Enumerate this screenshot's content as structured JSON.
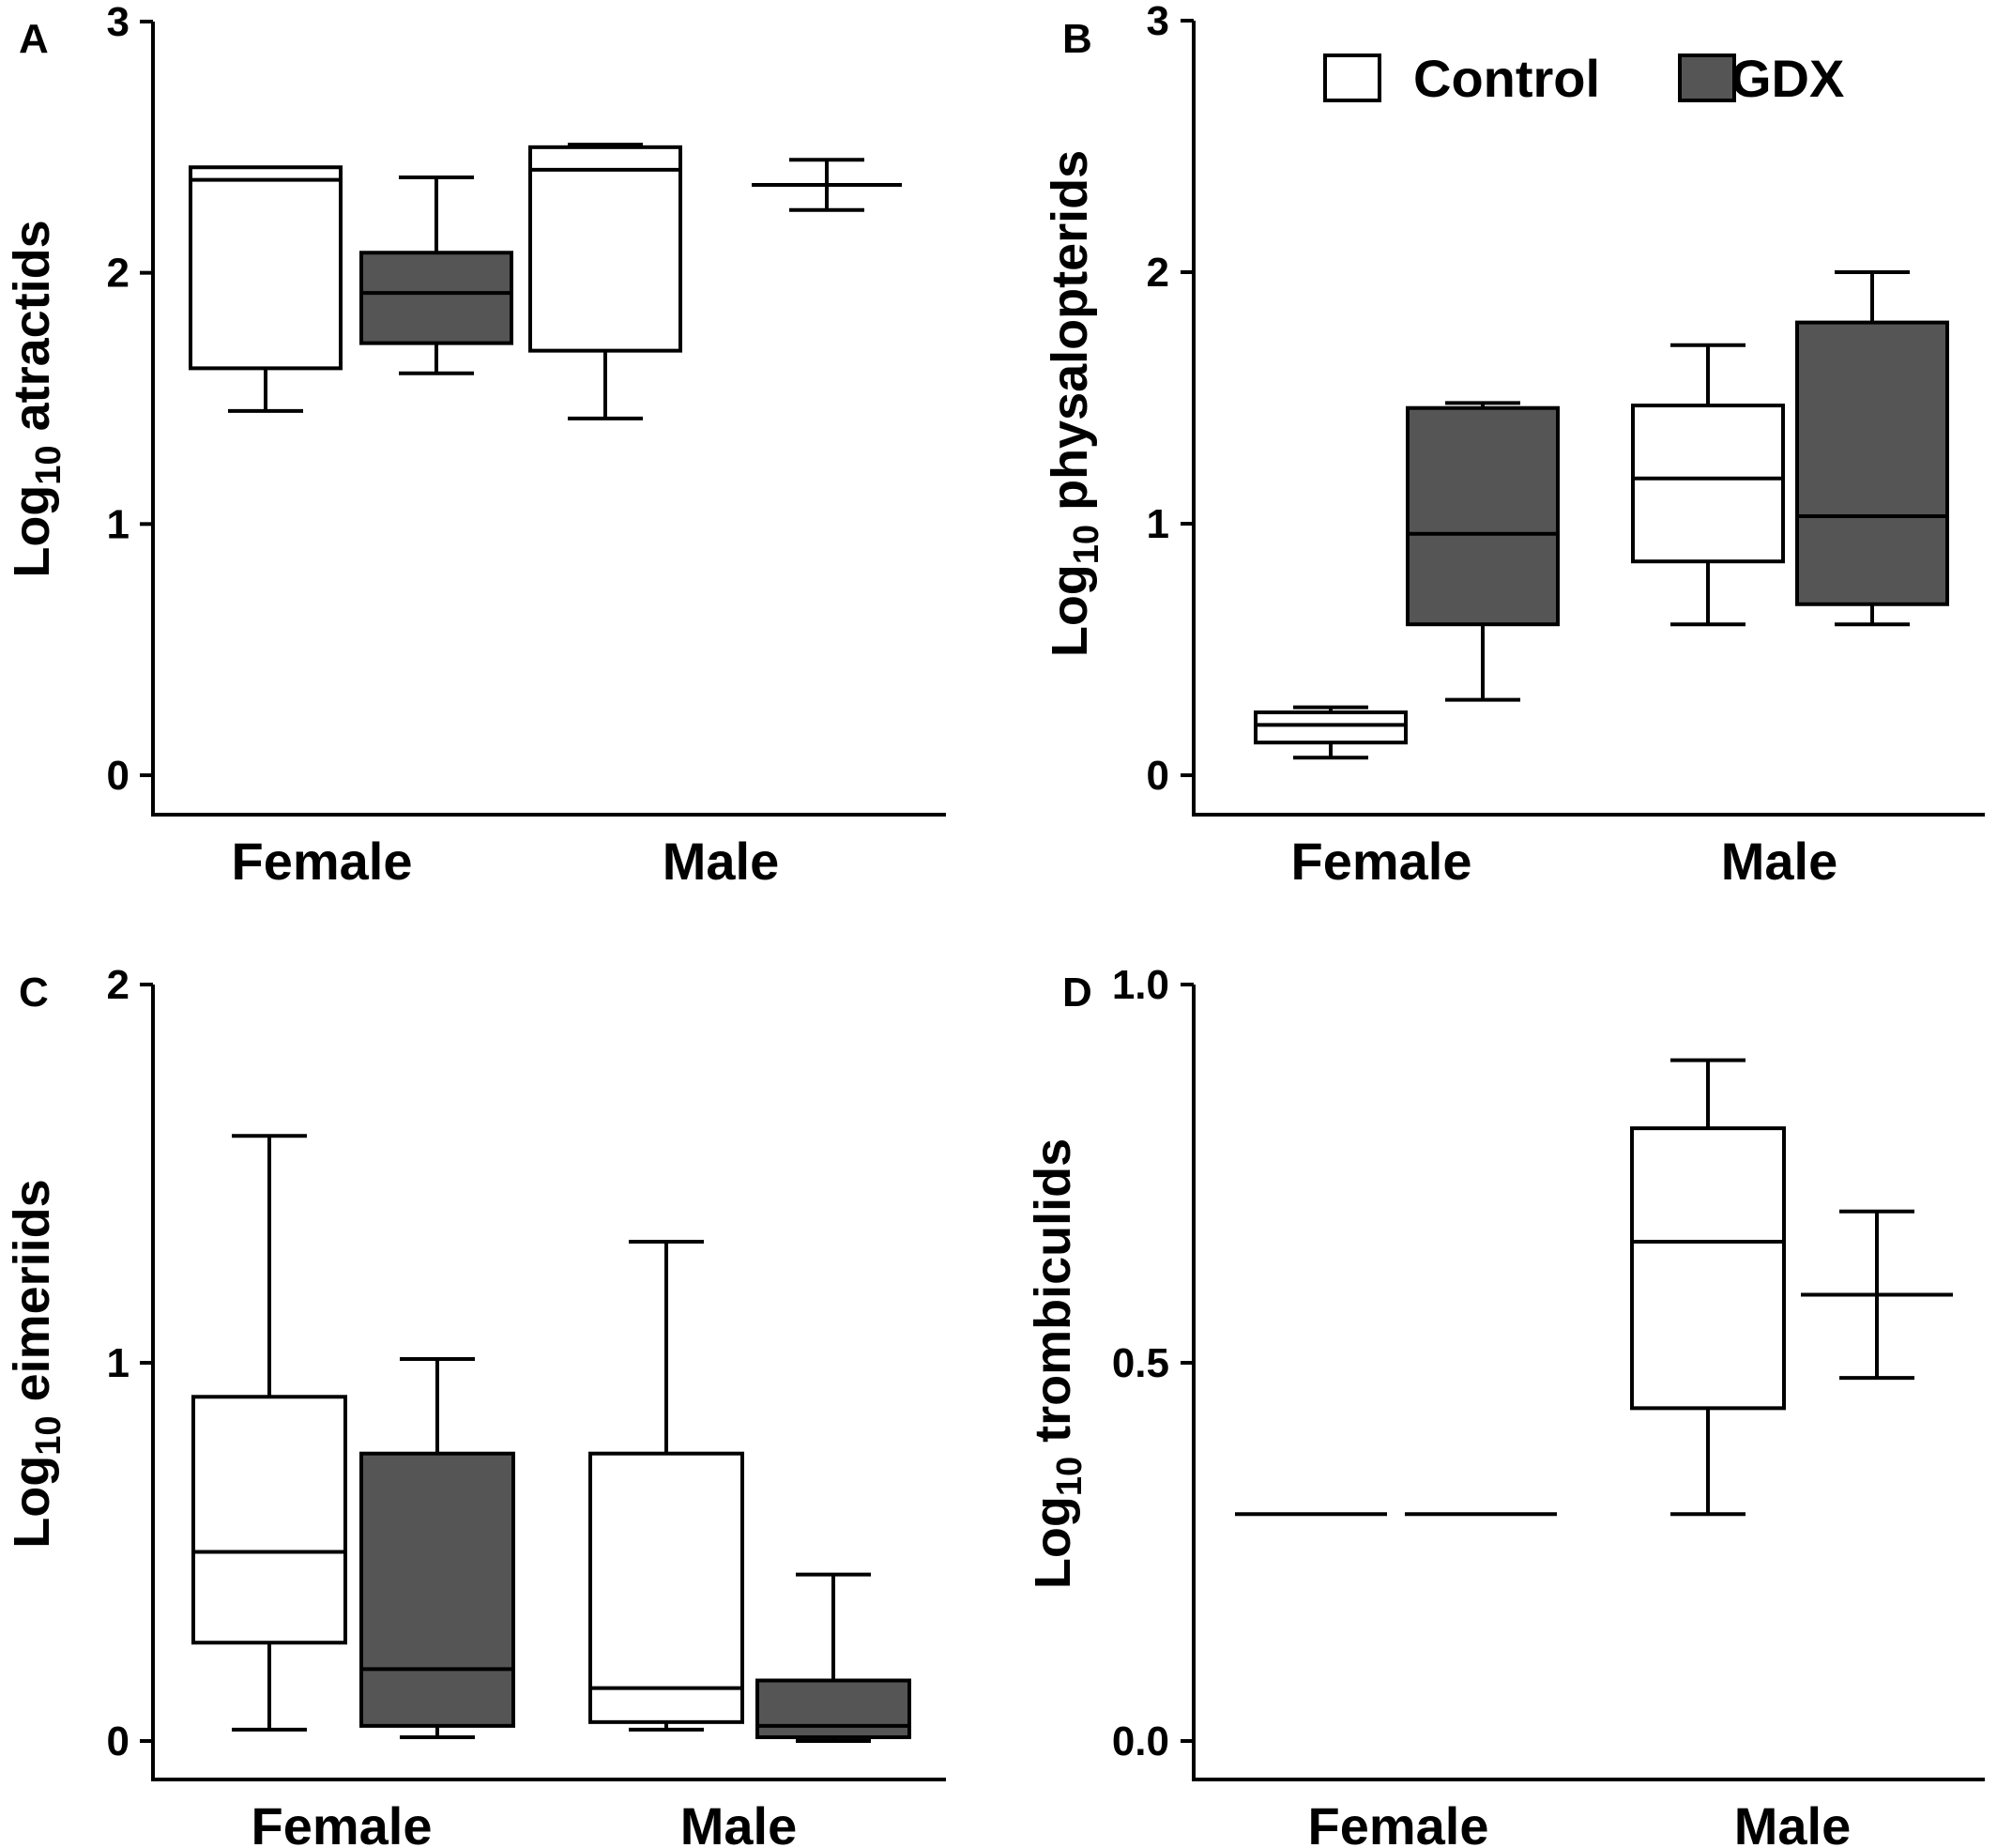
{
  "legend": {
    "entries": [
      {
        "label": "Control",
        "color": "#ffffff"
      },
      {
        "label": "GDX",
        "color": "#555555"
      }
    ]
  },
  "chart_data": [
    {
      "type": "box",
      "panel": "A",
      "ylabel_main": "Log",
      "ylabel_sub": "10",
      "ylabel_rest": " atractids",
      "ylim": [
        0,
        3
      ],
      "yticks": [
        "0",
        "1",
        "2",
        "3"
      ],
      "categories": [
        "Female",
        "Male"
      ],
      "series": [
        {
          "name": "Control",
          "color": "#ffffff",
          "boxes": [
            {
              "category": "Female",
              "min": 1.45,
              "q1": 1.62,
              "median": 2.37,
              "q3": 2.42,
              "max": 2.42
            },
            {
              "category": "Male",
              "min": 1.42,
              "q1": 1.69,
              "median": 2.41,
              "q3": 2.5,
              "max": 2.51
            }
          ]
        },
        {
          "name": "GDX",
          "color": "#555555",
          "boxes": [
            {
              "category": "Female",
              "min": 1.6,
              "q1": 1.72,
              "median": 1.92,
              "q3": 2.08,
              "max": 2.38
            },
            {
              "category": "Male",
              "min": 2.25,
              "q1": null,
              "median": 2.35,
              "q3": null,
              "max": 2.45
            }
          ]
        }
      ]
    },
    {
      "type": "box",
      "panel": "B",
      "ylabel_main": "Log",
      "ylabel_sub": "10",
      "ylabel_rest": " physalopterids",
      "ylim": [
        0,
        3
      ],
      "yticks": [
        "0",
        "1",
        "2",
        "3"
      ],
      "categories": [
        "Female",
        "Male"
      ],
      "series": [
        {
          "name": "Control",
          "color": "#ffffff",
          "boxes": [
            {
              "category": "Female",
              "min": 0.07,
              "q1": 0.13,
              "median": 0.2,
              "q3": 0.25,
              "max": 0.27
            },
            {
              "category": "Male",
              "min": 0.6,
              "q1": 0.85,
              "median": 1.18,
              "q3": 1.47,
              "max": 1.71
            }
          ]
        },
        {
          "name": "GDX",
          "color": "#555555",
          "boxes": [
            {
              "category": "Female",
              "min": 0.3,
              "q1": 0.6,
              "median": 0.96,
              "q3": 1.46,
              "max": 1.48
            },
            {
              "category": "Male",
              "min": 0.6,
              "q1": 0.68,
              "median": 1.03,
              "q3": 1.8,
              "max": 2.0
            }
          ]
        }
      ]
    },
    {
      "type": "box",
      "panel": "C",
      "ylabel_main": "Log",
      "ylabel_sub": "10",
      "ylabel_rest": " eimeriids",
      "ylim": [
        0,
        2
      ],
      "yticks": [
        "0",
        "1",
        "2"
      ],
      "categories": [
        "Female",
        "Male"
      ],
      "series": [
        {
          "name": "Control",
          "color": "#ffffff",
          "boxes": [
            {
              "category": "Female",
              "min": 0.03,
              "q1": 0.26,
              "median": 0.5,
              "q3": 0.91,
              "max": 1.6
            },
            {
              "category": "Male",
              "min": 0.03,
              "q1": 0.05,
              "median": 0.14,
              "q3": 0.76,
              "max": 1.32
            }
          ]
        },
        {
          "name": "GDX",
          "color": "#555555",
          "boxes": [
            {
              "category": "Female",
              "min": 0.01,
              "q1": 0.04,
              "median": 0.19,
              "q3": 0.76,
              "max": 1.01
            },
            {
              "category": "Male",
              "min": 0.0,
              "q1": 0.01,
              "median": 0.04,
              "q3": 0.16,
              "max": 0.44
            }
          ]
        }
      ]
    },
    {
      "type": "box",
      "panel": "D",
      "ylabel_main": "Log",
      "ylabel_sub": "10",
      "ylabel_rest": " trombiculids",
      "ylim": [
        0,
        1
      ],
      "yticks": [
        "0.0",
        "0.5",
        "1.0"
      ],
      "categories": [
        "Female",
        "Male"
      ],
      "series": [
        {
          "name": "Control",
          "color": "#ffffff",
          "boxes": [
            {
              "category": "Female",
              "min": null,
              "q1": null,
              "median": 0.3,
              "q3": null,
              "max": null
            },
            {
              "category": "Male",
              "min": 0.3,
              "q1": 0.44,
              "median": 0.66,
              "q3": 0.81,
              "max": 0.9
            }
          ]
        },
        {
          "name": "GDX",
          "color": "#555555",
          "boxes": [
            {
              "category": "Female",
              "min": null,
              "q1": null,
              "median": 0.3,
              "q3": null,
              "max": null
            },
            {
              "category": "Male",
              "min": 0.48,
              "q1": null,
              "median": 0.59,
              "q3": null,
              "max": 0.7
            }
          ]
        }
      ]
    }
  ]
}
